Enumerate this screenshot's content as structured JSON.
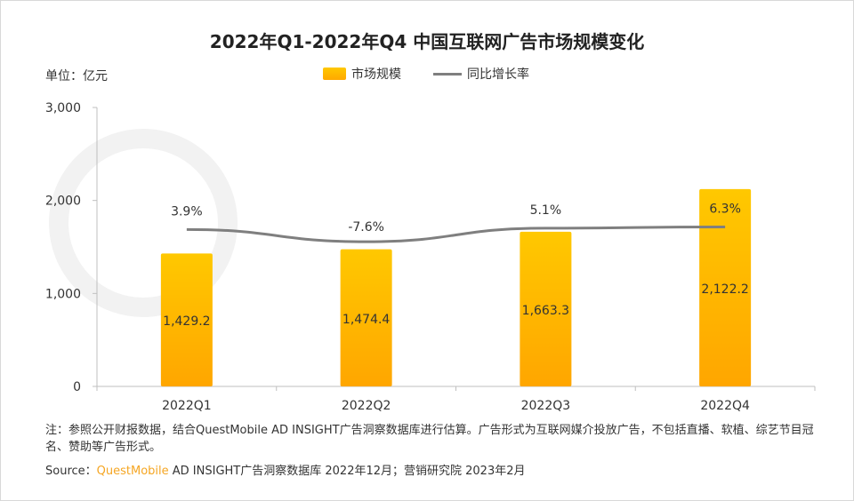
{
  "chart_data": {
    "type": "bar",
    "title": "2022年Q1-2022年Q4 中国互联网广告市场规模变化",
    "unit_label": "单位：亿元",
    "categories": [
      "2022Q1",
      "2022Q2",
      "2022Q3",
      "2022Q4"
    ],
    "ylim": [
      0,
      3000
    ],
    "yticks": [
      "0",
      "1,000",
      "2,000",
      "3,000"
    ],
    "ytick_values": [
      0,
      1000,
      2000,
      3000
    ],
    "grid": false,
    "legend_position": "top",
    "series": [
      {
        "name": "市场规模",
        "type": "bar",
        "values": [
          1429.2,
          1474.4,
          1663.3,
          2122.2
        ],
        "labels": [
          "1,429.2",
          "1,474.4",
          "1,663.3",
          "2,122.2"
        ],
        "color": "#FFB800"
      },
      {
        "name": "同比增长率",
        "type": "line",
        "values": [
          3.9,
          -7.6,
          5.1,
          6.3
        ],
        "labels": [
          "3.9%",
          "-7.6%",
          "5.1%",
          "6.3%"
        ],
        "unit": "%",
        "color": "#7F7F7F"
      }
    ]
  },
  "note": "注：参照公开财报数据，结合QuestMobile AD INSIGHT广告洞察数据库进行估算。广告形式为互联网媒介投放广告，不包括直播、软植、综艺节目冠名、赞助等广告形式。",
  "source": {
    "label": "Source：",
    "brand": "QuestMobile",
    "text": " AD INSIGHT广告洞察数据库 2022年12月；营销研究院 2023年2月"
  },
  "watermark": "QUESTMOBILE"
}
